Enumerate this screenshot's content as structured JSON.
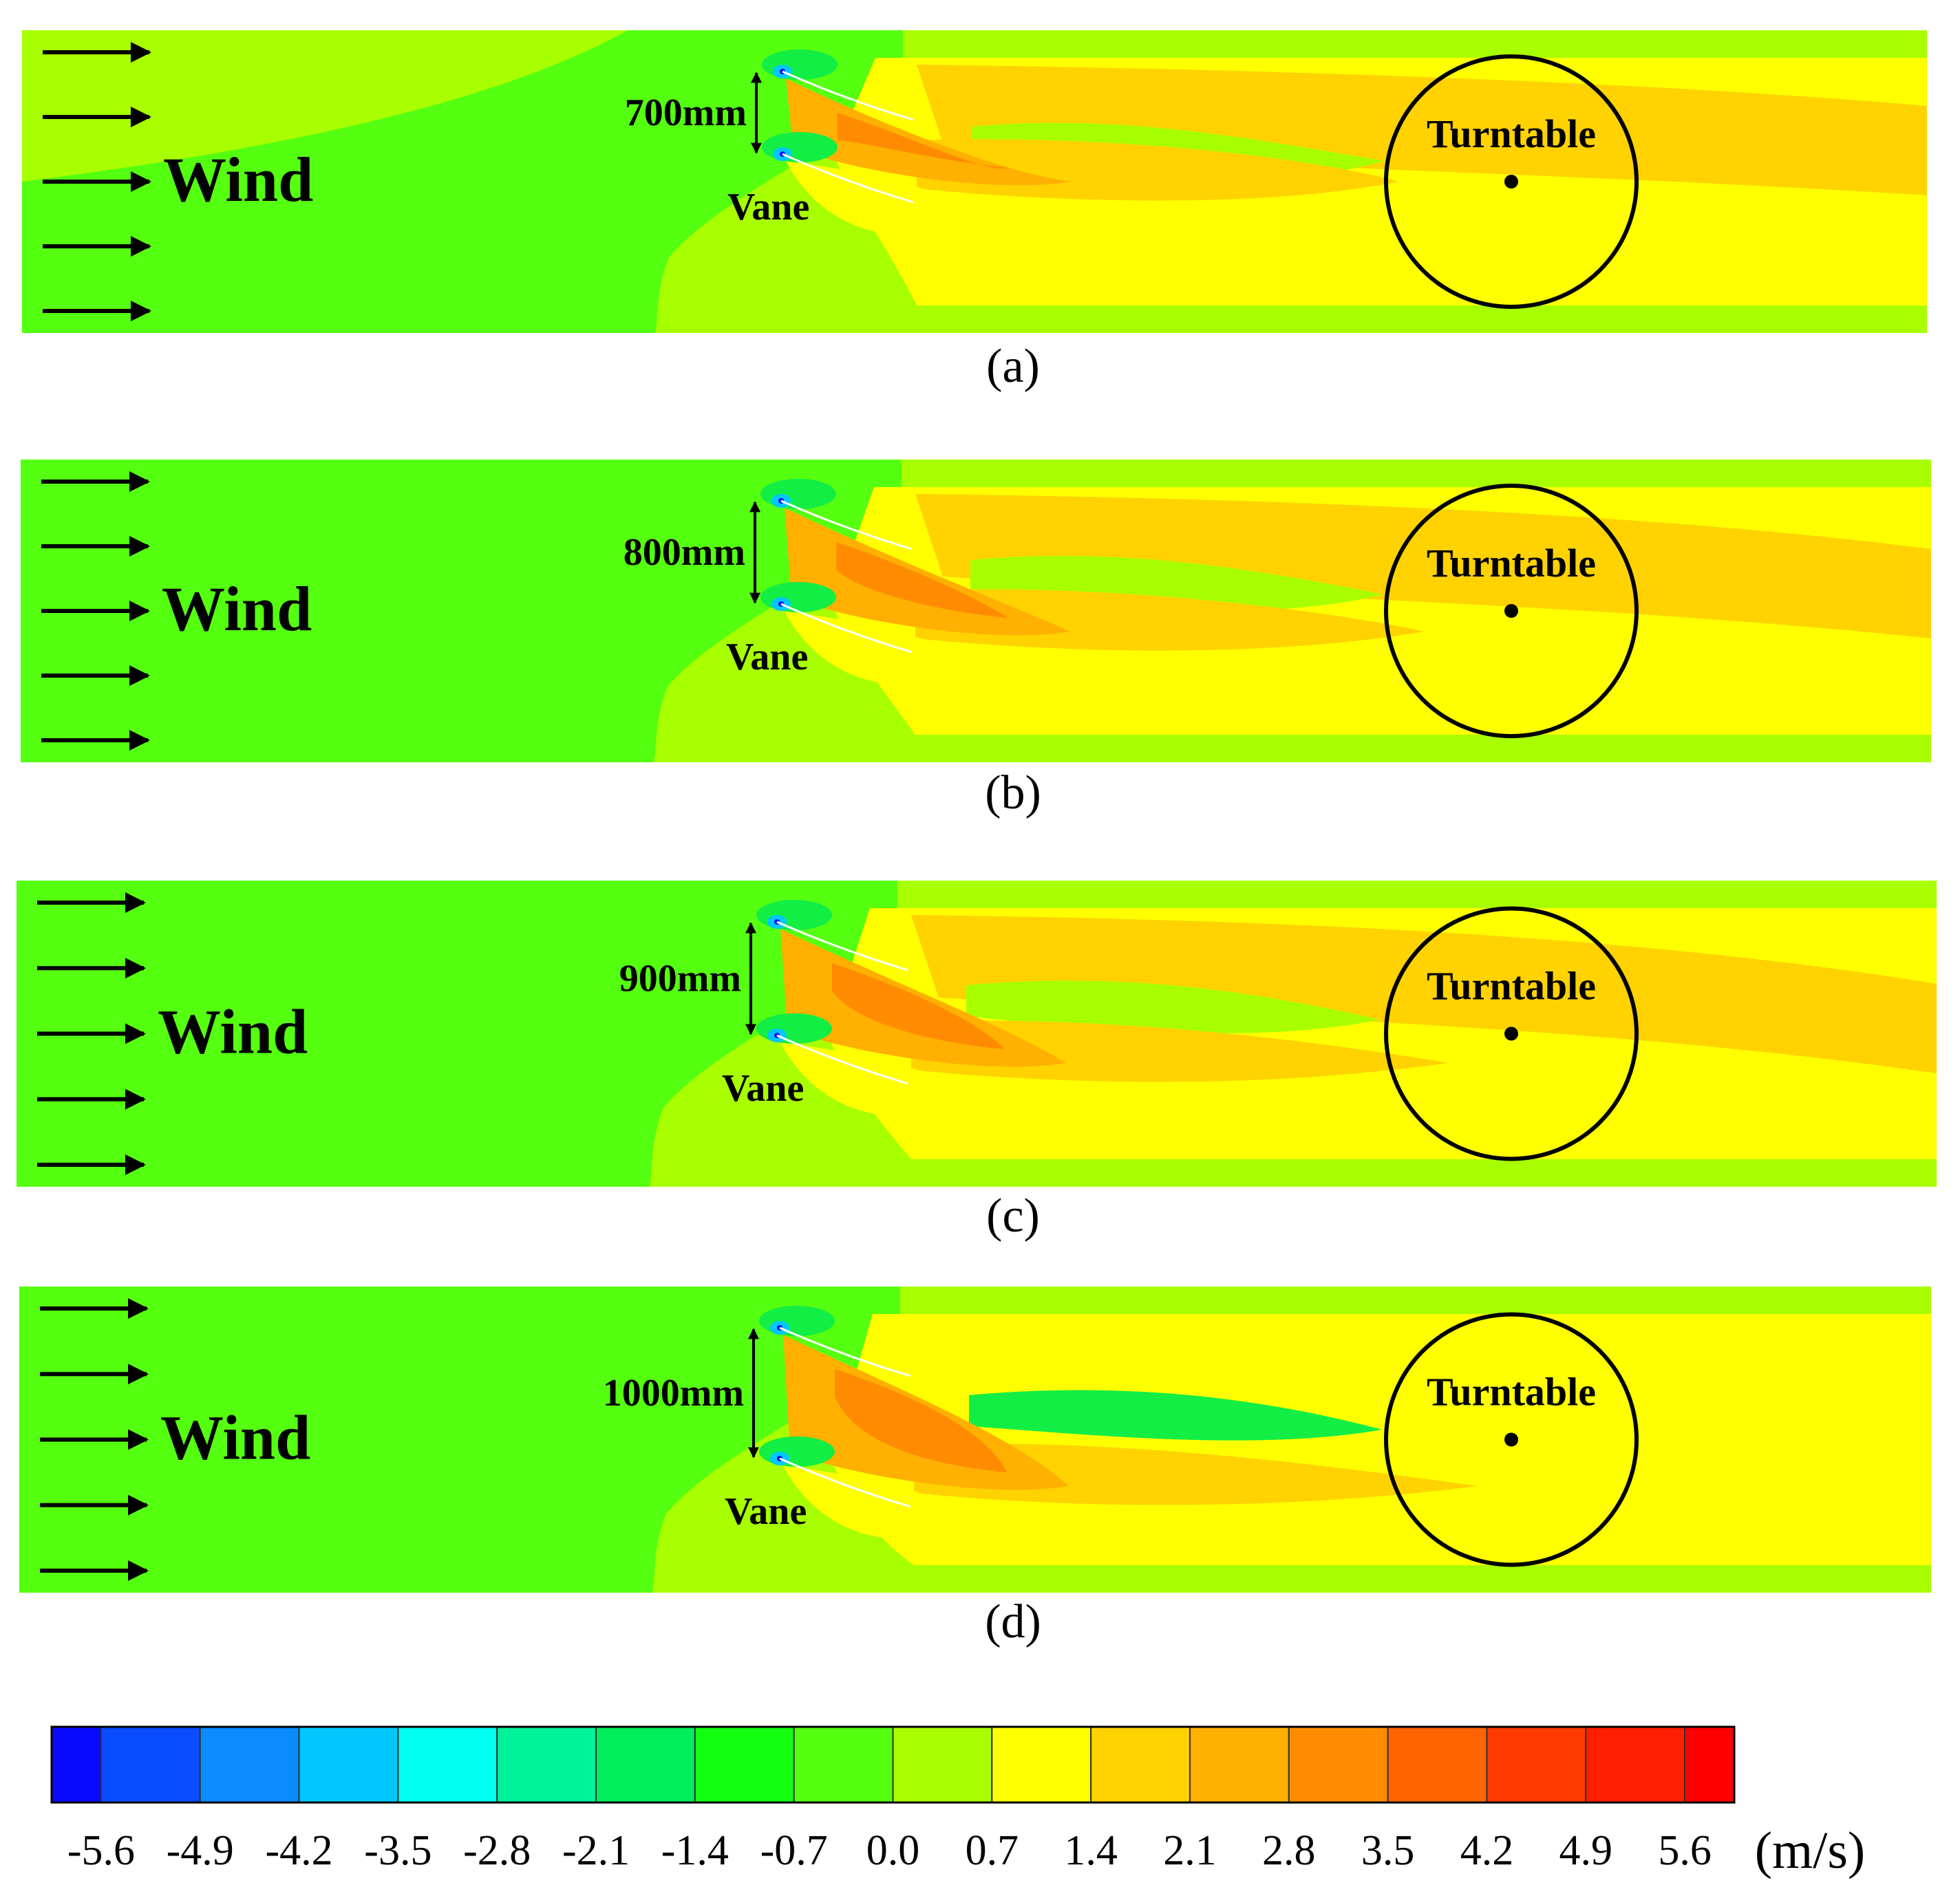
{
  "panels": [
    {
      "caption": "(a)",
      "spacing_label": "700mm",
      "wind_label": "Wind",
      "vane_label": "Vane",
      "turntable_label": "Turntable"
    },
    {
      "caption": "(b)",
      "spacing_label": "800mm",
      "wind_label": "Wind",
      "vane_label": "Vane",
      "turntable_label": "Turntable"
    },
    {
      "caption": "(c)",
      "spacing_label": "900mm",
      "wind_label": "Wind",
      "vane_label": "Vane",
      "turntable_label": "Turntable"
    },
    {
      "caption": "(d)",
      "spacing_label": "1000mm",
      "wind_label": "Wind",
      "vane_label": "Vane",
      "turntable_label": "Turntable"
    }
  ],
  "colorbar": {
    "unit": "(m/s)",
    "tick_labels": [
      "-5.6",
      "-4.9",
      "-4.2",
      "-3.5",
      "-2.8",
      "-2.1",
      "-1.4",
      "-0.7",
      "0.0",
      "0.7",
      "1.4",
      "2.1",
      "2.8",
      "3.5",
      "4.2",
      "4.9",
      "5.6"
    ],
    "colors": [
      "#0a0aff",
      "#0a4cff",
      "#0a8cff",
      "#00c8ff",
      "#00ffee",
      "#00f29a",
      "#00ee5a",
      "#12ff12",
      "#55ff10",
      "#a8ff00",
      "#ffff00",
      "#ffd200",
      "#ffb000",
      "#ff8c00",
      "#ff6400",
      "#ff3a00",
      "#ff1e00",
      "#ff0000"
    ]
  },
  "field_colors": {
    "inflow": "#55ff10",
    "background": "#a8ff00",
    "wake": "#ffff00",
    "jet": "#ffd200",
    "core": "#ffb000",
    "hot": "#ff8c00",
    "low": "#12ee44",
    "stagnation": "#00c8ff"
  }
}
